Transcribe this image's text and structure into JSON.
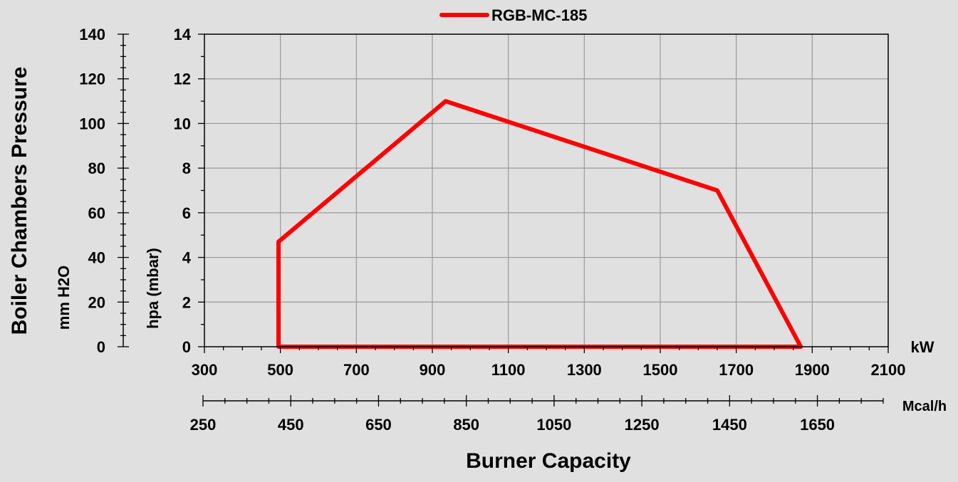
{
  "chart_data": {
    "type": "line",
    "legend": {
      "position": "top-center"
    },
    "grid": true,
    "x_axis_kw": {
      "unit_label": "kW",
      "range": [
        300,
        2100
      ],
      "ticks": [
        300,
        500,
        700,
        900,
        1100,
        1300,
        1500,
        1700,
        1900,
        2100
      ],
      "minor_step": 50
    },
    "x_axis_mcal": {
      "unit_label": "Mcal/h",
      "range": [
        250,
        1800
      ],
      "ticks": [
        250,
        450,
        650,
        850,
        1050,
        1250,
        1450,
        1650
      ],
      "minor_step": 50
    },
    "x_title": "Burner Capacity",
    "y_axis_hpa": {
      "label": "hpa (mbar)",
      "range": [
        0,
        14
      ],
      "ticks": [
        0,
        2,
        4,
        6,
        8,
        10,
        12,
        14
      ],
      "minor_step": 1
    },
    "y_axis_mmh2o": {
      "label": "mm H2O",
      "range": [
        0,
        140
      ],
      "ticks": [
        0,
        20,
        40,
        60,
        80,
        100,
        120,
        140
      ],
      "minor_step": 5
    },
    "y_title": "Boiler Chambers Pressure",
    "series": [
      {
        "name": "RGB-MC-185",
        "color": "#ff0000",
        "points": [
          [
            495,
            0
          ],
          [
            495,
            4.7
          ],
          [
            935,
            11
          ],
          [
            1650,
            7
          ],
          [
            1870,
            0
          ],
          [
            495,
            0
          ]
        ]
      }
    ]
  }
}
